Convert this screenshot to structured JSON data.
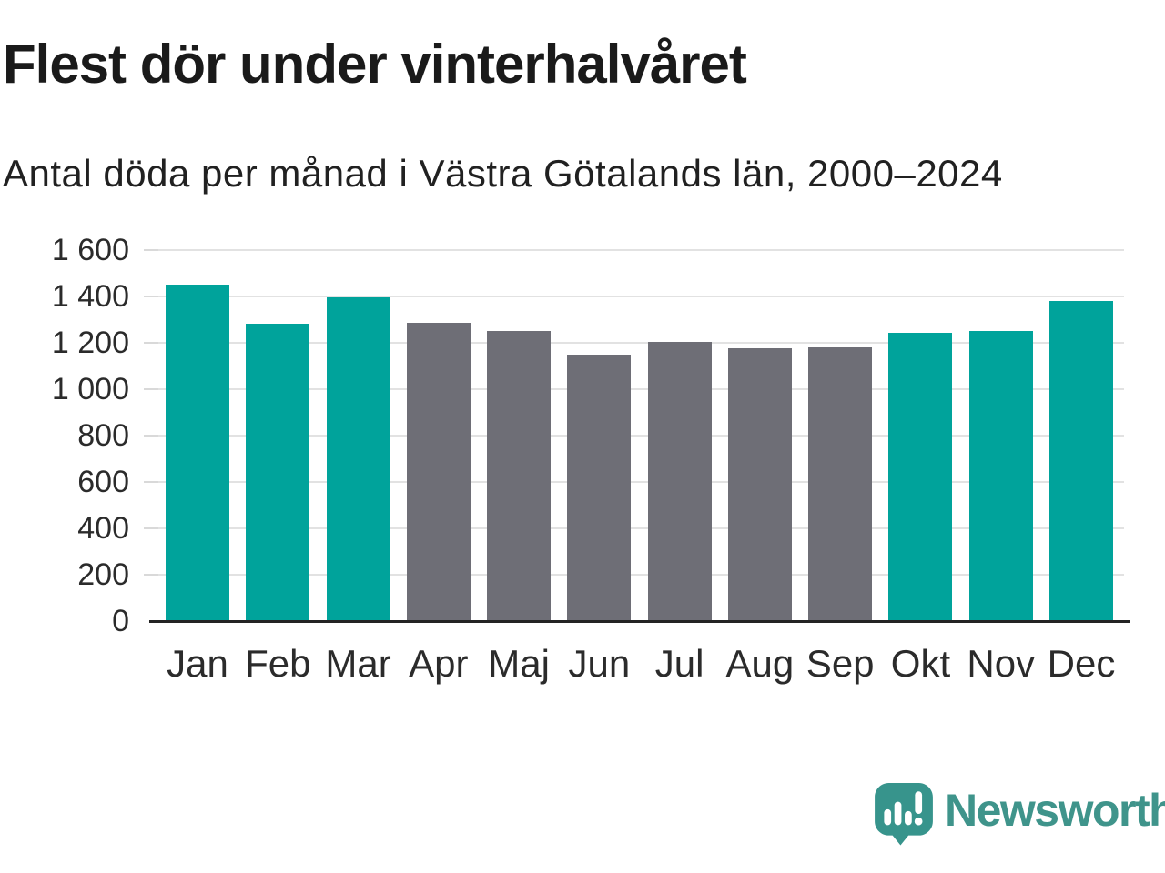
{
  "header": {
    "title": "Flest dör under vinterhalvåret",
    "subtitle": "Antal döda per månad i Västra Götalands län, 2000–2024"
  },
  "chart_data": {
    "type": "bar",
    "title": "Flest dör under vinterhalvåret",
    "subtitle": "Antal döda per månad i Västra Götalands län, 2000–2024",
    "categories": [
      "Jan",
      "Feb",
      "Mar",
      "Apr",
      "Maj",
      "Jun",
      "Jul",
      "Aug",
      "Sep",
      "Okt",
      "Nov",
      "Dec"
    ],
    "values": [
      1453,
      1283,
      1398,
      1286,
      1250,
      1150,
      1205,
      1178,
      1180,
      1244,
      1252,
      1380
    ],
    "bar_color_roles": [
      "winter",
      "winter",
      "winter",
      "summer",
      "summer",
      "summer",
      "summer",
      "summer",
      "summer",
      "winter",
      "winter",
      "winter"
    ],
    "colors": {
      "winter": "#00a39b",
      "summer": "#6e6e76"
    },
    "xlabel": "",
    "ylabel": "",
    "ylim": [
      0,
      1600
    ],
    "ytick_step": 200,
    "ytick_labels": [
      "0",
      "200",
      "400",
      "600",
      "800",
      "1 000",
      "1 200",
      "1 400",
      "1 600"
    ],
    "grid": true,
    "legend": "none"
  },
  "branding": {
    "logo_text": "Newsworthy",
    "logo_text_color": "#3f948b",
    "logo_icon": "newsworthy-speech-bubble-chart-icon",
    "logo_icon_color": "#37948c"
  }
}
